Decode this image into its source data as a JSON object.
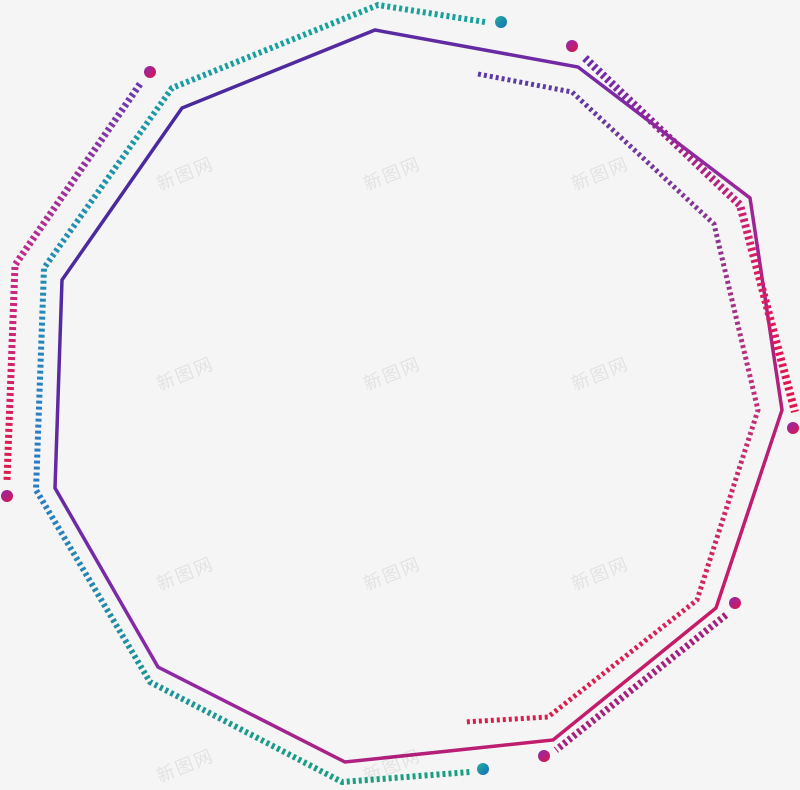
{
  "watermark": {
    "text": "新图网"
  },
  "colors": {
    "main_start": "#3a2a9a",
    "main_mid": "#8a2aa8",
    "main_end": "#e0154a",
    "teal_start": "#1a9e9a",
    "teal_mid": "#2a7ac8",
    "dash_pink": "#c42a8a",
    "dash_red": "#e01a4a",
    "dash_purple": "#5a3aa8",
    "dot_teal": "#1a8ab8",
    "dot_magenta": "#c81a7a"
  }
}
